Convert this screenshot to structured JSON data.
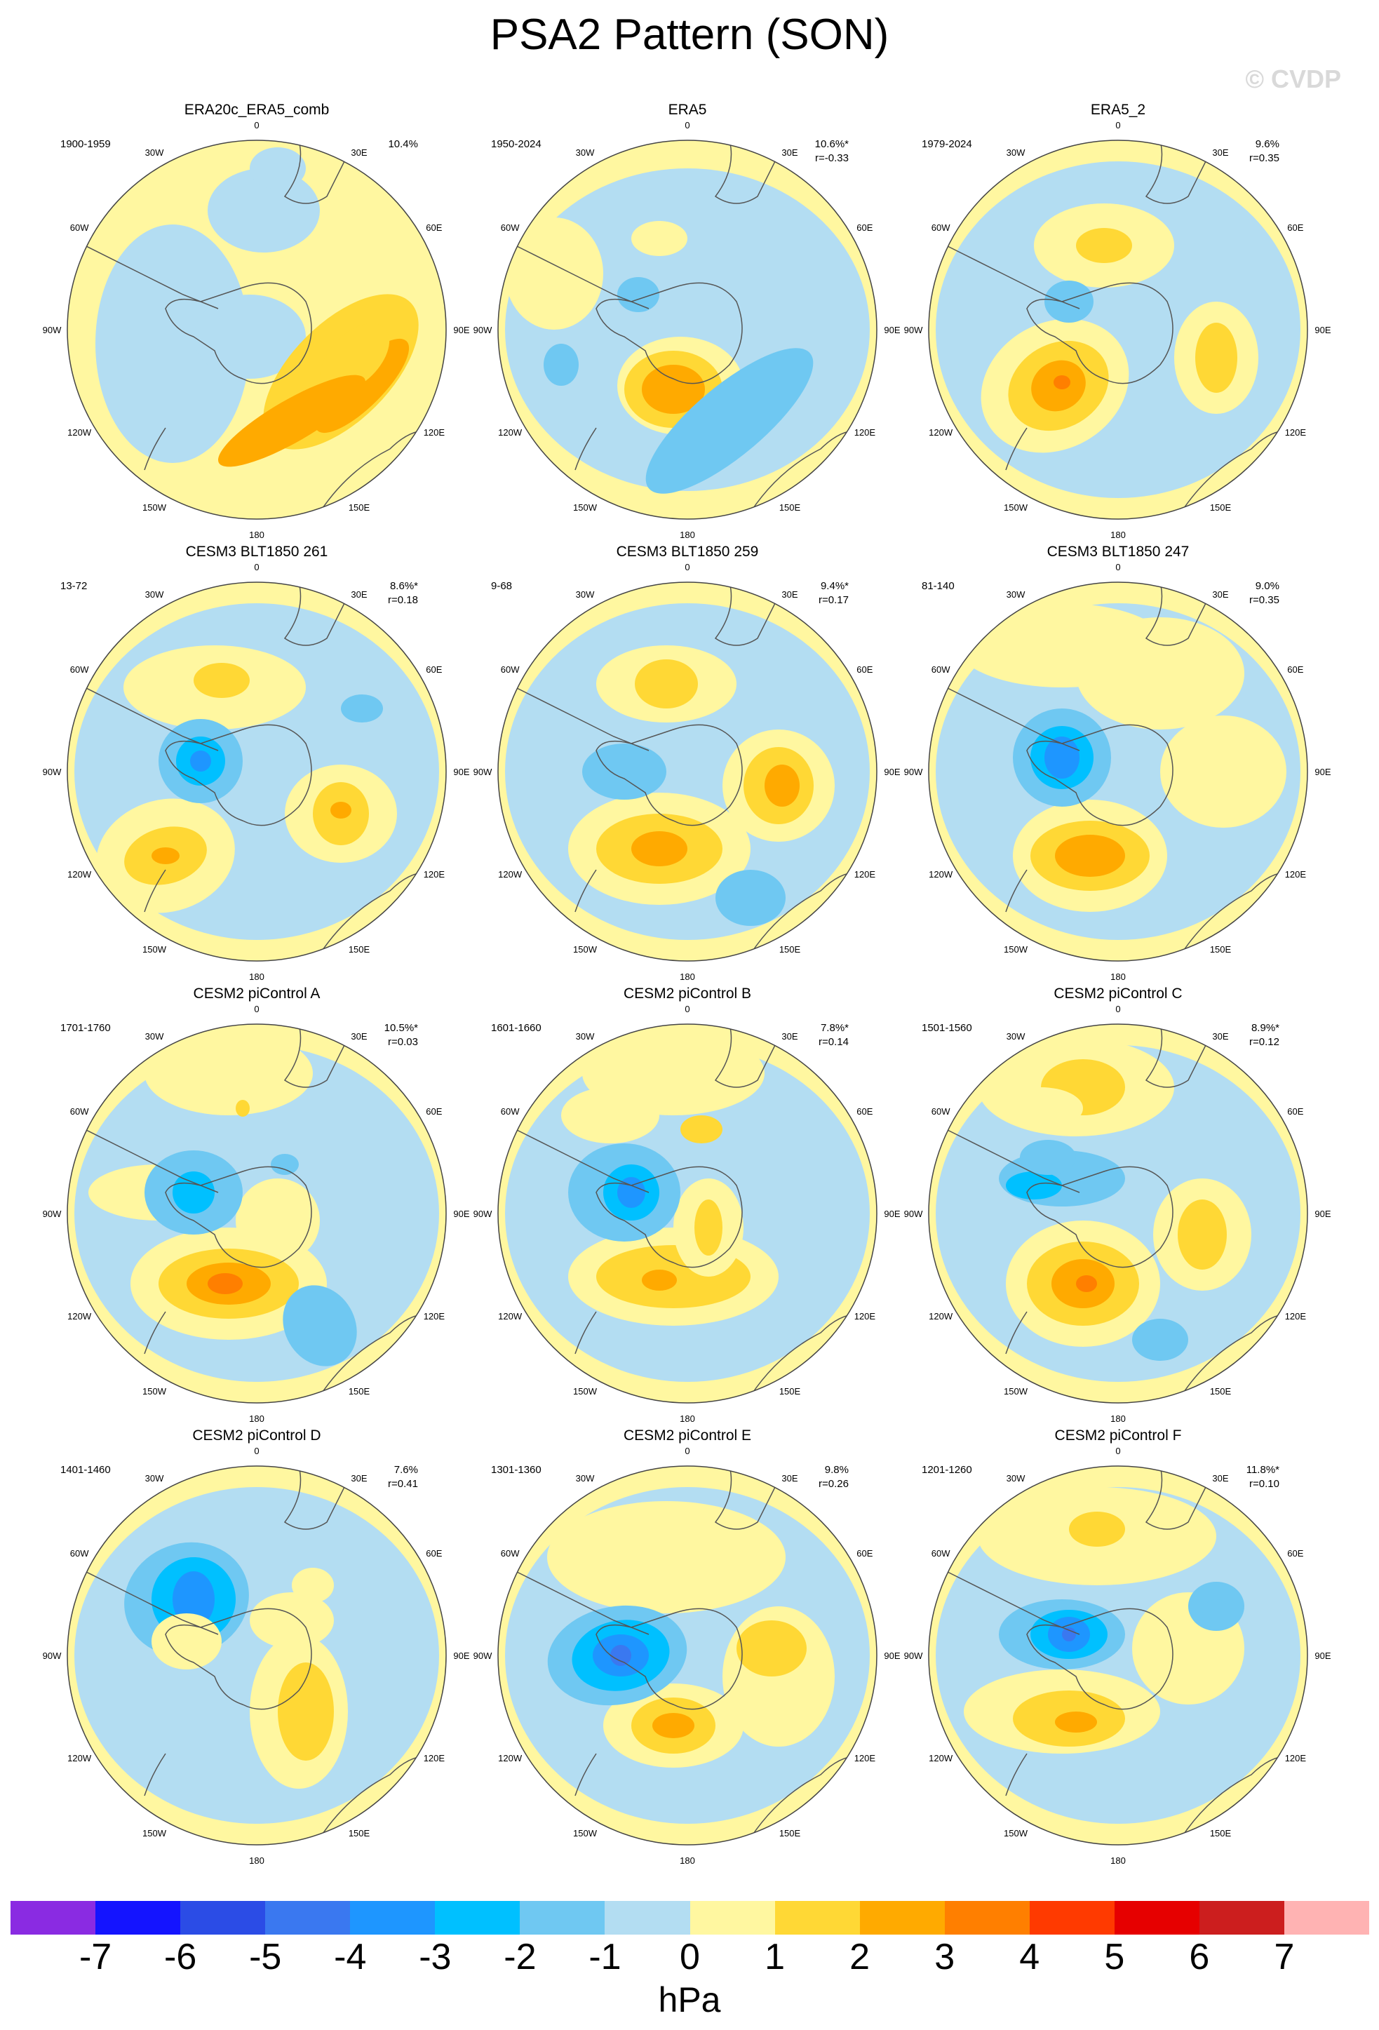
{
  "title": "PSA2 Pattern (SON)",
  "watermark": "© CVDP",
  "lon_labels": [
    "0",
    "30E",
    "60E",
    "90E",
    "120E",
    "150E",
    "180",
    "150W",
    "120W",
    "90W",
    "60W",
    "30W"
  ],
  "colors": {
    "n7": "#8a2be2",
    "n6": "#1414ff",
    "n5": "#2b4ce6",
    "n4": "#3a78f0",
    "n3": "#1e96ff",
    "n2": "#00c0ff",
    "n1": "#6fc8f2",
    "z0": "#b3ddf2",
    "p0": "#fff7a0",
    "p1": "#ffd835",
    "p2": "#ffaa00",
    "p3": "#ff7f00",
    "p4": "#ff3a00",
    "p5": "#e60000",
    "p6": "#cc1e1e",
    "p7": "#ffb3b3"
  },
  "colorbar": {
    "units": "hPa",
    "colors": [
      "#8a2be2",
      "#1414ff",
      "#2b4ce6",
      "#3a78f0",
      "#1e96ff",
      "#00c0ff",
      "#6fc8f2",
      "#b3ddf2",
      "#fff7a0",
      "#ffd835",
      "#ffaa00",
      "#ff7f00",
      "#ff3a00",
      "#e60000",
      "#cc1e1e",
      "#ffb3b3"
    ],
    "ticks": [
      "-7",
      "-6",
      "-5",
      "-4",
      "-3",
      "-2",
      "-1",
      "0",
      "1",
      "2",
      "3",
      "4",
      "5",
      "6",
      "7"
    ]
  },
  "panels": [
    {
      "title": "ERA20c_ERA5_comb",
      "period": "1900-1959",
      "pct": "10.4%",
      "r": ""
    },
    {
      "title": "ERA5",
      "period": "1950-2024",
      "pct": "10.6%*",
      "r": "r=-0.33"
    },
    {
      "title": "ERA5_2",
      "period": "1979-2024",
      "pct": "9.6%",
      "r": "r=0.35"
    },
    {
      "title": "CESM3 BLT1850 261",
      "period": "13-72",
      "pct": "8.6%*",
      "r": "r=0.18"
    },
    {
      "title": "CESM3 BLT1850 259",
      "period": "9-68",
      "pct": "9.4%*",
      "r": "r=0.17"
    },
    {
      "title": "CESM3 BLT1850 247",
      "period": "81-140",
      "pct": "9.0%",
      "r": "r=0.35"
    },
    {
      "title": "CESM2 piControl A",
      "period": "1701-1760",
      "pct": "10.5%*",
      "r": "r=0.03"
    },
    {
      "title": "CESM2 piControl B",
      "period": "1601-1660",
      "pct": "7.8%*",
      "r": "r=0.14"
    },
    {
      "title": "CESM2 piControl C",
      "period": "1501-1560",
      "pct": "8.9%*",
      "r": "r=0.12"
    },
    {
      "title": "CESM2 piControl D",
      "period": "1401-1460",
      "pct": "7.6%",
      "r": "r=0.41"
    },
    {
      "title": "CESM2 piControl E",
      "period": "1301-1360",
      "pct": "9.8%",
      "r": "r=0.26"
    },
    {
      "title": "CESM2 piControl F",
      "period": "1201-1260",
      "pct": "11.8%*",
      "r": "r=0.10"
    }
  ]
}
